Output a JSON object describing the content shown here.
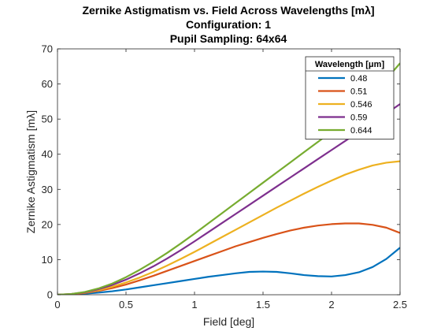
{
  "chart_data": {
    "type": "line",
    "title_lines": [
      "Zernike Astigmatism vs. Field Across Wavelengths [mλ]",
      "Configuration: 1",
      "Pupil Sampling: 64x64"
    ],
    "xlabel": "Field [deg]",
    "ylabel": "Zernike Astigmatism [mλ]",
    "xlim": [
      0,
      2.5
    ],
    "ylim": [
      0,
      70
    ],
    "xticks": [
      0,
      0.5,
      1,
      1.5,
      2,
      2.5
    ],
    "xtick_labels": [
      "0",
      "0.5",
      "1",
      "1.5",
      "2",
      "2.5"
    ],
    "yticks": [
      0,
      10,
      20,
      30,
      40,
      50,
      60,
      70
    ],
    "ytick_labels": [
      "0",
      "10",
      "20",
      "30",
      "40",
      "50",
      "60",
      "70"
    ],
    "grid": false,
    "legend": {
      "title": "Wavelength [μm]",
      "placement": "top-right"
    },
    "x": [
      0,
      0.1,
      0.2,
      0.3,
      0.4,
      0.5,
      0.6,
      0.7,
      0.8,
      0.9,
      1.0,
      1.1,
      1.2,
      1.3,
      1.4,
      1.5,
      1.6,
      1.7,
      1.8,
      1.9,
      2.0,
      2.1,
      2.2,
      2.3,
      2.4,
      2.5
    ],
    "series": [
      {
        "name": "0.48",
        "color": "#0072BD",
        "values": [
          0,
          0.1,
          0.3,
          0.6,
          1.0,
          1.5,
          2.1,
          2.7,
          3.3,
          3.9,
          4.5,
          5.1,
          5.6,
          6.1,
          6.5,
          6.6,
          6.5,
          6.1,
          5.6,
          5.3,
          5.2,
          5.6,
          6.4,
          7.9,
          10.2,
          13.4
        ]
      },
      {
        "name": "0.51",
        "color": "#D95319",
        "values": [
          0,
          0.1,
          0.5,
          1.1,
          1.9,
          2.9,
          4.1,
          5.4,
          6.8,
          8.2,
          9.6,
          11.0,
          12.4,
          13.8,
          15.0,
          16.2,
          17.3,
          18.3,
          19.1,
          19.7,
          20.1,
          20.3,
          20.3,
          19.9,
          19.1,
          17.6
        ]
      },
      {
        "name": "0.546",
        "color": "#EDB120",
        "values": [
          0,
          0.2,
          0.6,
          1.3,
          2.3,
          3.5,
          4.9,
          6.5,
          8.3,
          10.2,
          12.2,
          14.3,
          16.4,
          18.5,
          20.6,
          22.7,
          24.8,
          26.8,
          28.8,
          30.7,
          32.5,
          34.2,
          35.6,
          36.8,
          37.6,
          38.0
        ]
      },
      {
        "name": "0.59",
        "color": "#7E2F8E",
        "values": [
          0,
          0.2,
          0.7,
          1.6,
          2.8,
          4.3,
          6.1,
          8.1,
          10.3,
          12.7,
          15.2,
          17.8,
          20.4,
          23.0,
          25.6,
          28.2,
          30.8,
          33.4,
          36.0,
          38.6,
          41.2,
          43.8,
          46.4,
          49.0,
          51.6,
          54.3
        ]
      },
      {
        "name": "0.644",
        "color": "#77AC30",
        "values": [
          0,
          0.2,
          0.8,
          1.8,
          3.2,
          5.0,
          7.1,
          9.4,
          11.9,
          14.6,
          17.4,
          20.3,
          23.2,
          26.1,
          29.0,
          31.9,
          34.8,
          37.7,
          40.6,
          43.5,
          46.4,
          49.8,
          53.4,
          57.2,
          61.4,
          65.9
        ]
      }
    ]
  }
}
